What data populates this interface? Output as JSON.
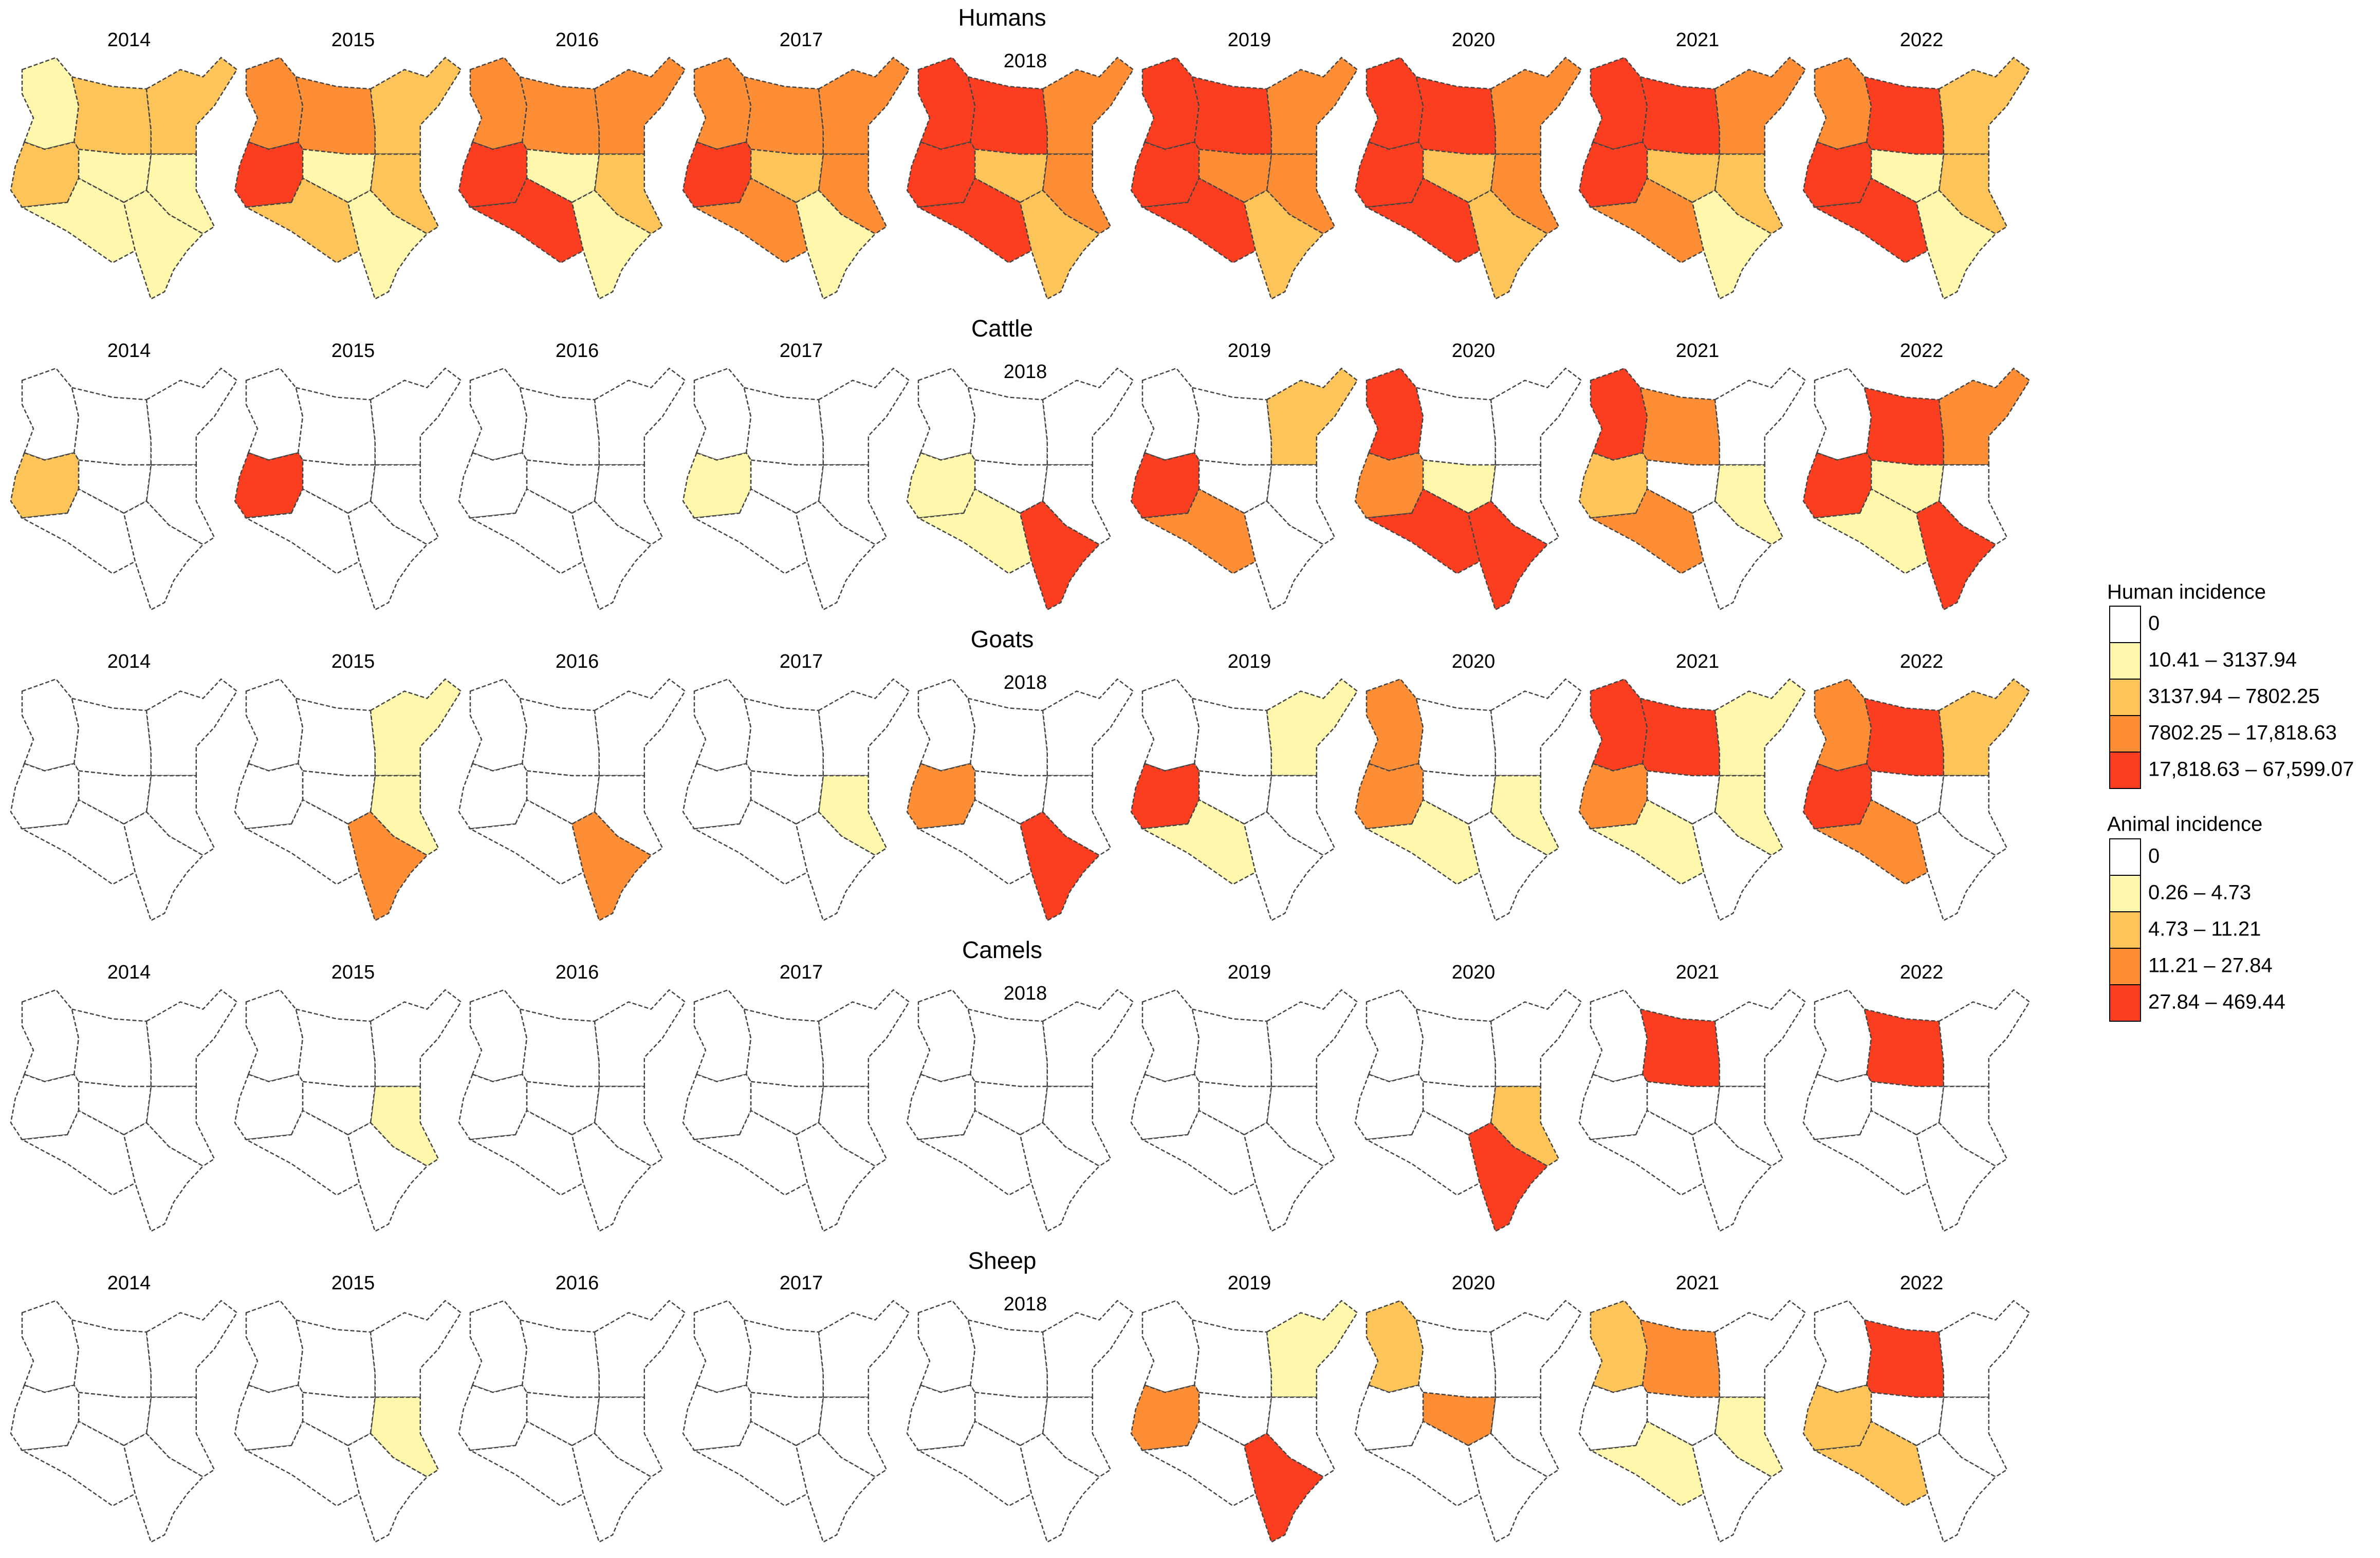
{
  "years": [
    "2014",
    "2015",
    "2016",
    "2017",
    "2018",
    "2019",
    "2020",
    "2021",
    "2022"
  ],
  "rows": [
    {
      "title": "Humans",
      "legend": 0,
      "panels": [
        [
          1,
          2,
          2,
          1,
          1,
          2,
          1,
          1
        ],
        [
          3,
          3,
          2,
          2,
          1,
          4,
          2,
          1
        ],
        [
          3,
          3,
          3,
          2,
          1,
          4,
          4,
          1
        ],
        [
          3,
          3,
          3,
          3,
          2,
          4,
          3,
          1
        ],
        [
          4,
          4,
          3,
          3,
          2,
          4,
          4,
          2
        ],
        [
          4,
          4,
          3,
          3,
          3,
          4,
          4,
          2
        ],
        [
          4,
          4,
          3,
          3,
          2,
          4,
          4,
          2
        ],
        [
          4,
          4,
          3,
          2,
          2,
          4,
          3,
          1
        ],
        [
          3,
          4,
          2,
          2,
          1,
          4,
          4,
          1
        ]
      ]
    },
    {
      "title": "Cattle",
      "legend": 1,
      "panels": [
        [
          0,
          0,
          0,
          0,
          0,
          2,
          0,
          0
        ],
        [
          0,
          0,
          0,
          0,
          0,
          4,
          0,
          0
        ],
        [
          0,
          0,
          0,
          0,
          0,
          0,
          0,
          0
        ],
        [
          0,
          0,
          0,
          0,
          0,
          1,
          0,
          0
        ],
        [
          0,
          0,
          0,
          0,
          0,
          1,
          1,
          4
        ],
        [
          0,
          0,
          2,
          0,
          0,
          4,
          3,
          0
        ],
        [
          4,
          0,
          0,
          0,
          1,
          3,
          4,
          4
        ],
        [
          4,
          3,
          0,
          1,
          0,
          2,
          3,
          0
        ],
        [
          0,
          4,
          3,
          0,
          1,
          4,
          1,
          4
        ]
      ]
    },
    {
      "title": "Goats",
      "legend": 1,
      "panels": [
        [
          0,
          0,
          0,
          0,
          0,
          0,
          0,
          0
        ],
        [
          0,
          0,
          1,
          1,
          0,
          0,
          0,
          3
        ],
        [
          0,
          0,
          0,
          0,
          0,
          0,
          0,
          3
        ],
        [
          0,
          0,
          0,
          1,
          0,
          0,
          0,
          0
        ],
        [
          0,
          0,
          0,
          0,
          0,
          3,
          0,
          4
        ],
        [
          0,
          0,
          1,
          0,
          0,
          4,
          1,
          0
        ],
        [
          3,
          0,
          0,
          1,
          0,
          3,
          1,
          0
        ],
        [
          4,
          4,
          1,
          1,
          0,
          3,
          1,
          0
        ],
        [
          3,
          4,
          2,
          0,
          0,
          4,
          3,
          0
        ]
      ]
    },
    {
      "title": "Camels",
      "legend": 1,
      "panels": [
        [
          0,
          0,
          0,
          0,
          0,
          0,
          0,
          0
        ],
        [
          0,
          0,
          0,
          1,
          0,
          0,
          0,
          0
        ],
        [
          0,
          0,
          0,
          0,
          0,
          0,
          0,
          0
        ],
        [
          0,
          0,
          0,
          0,
          0,
          0,
          0,
          0
        ],
        [
          0,
          0,
          0,
          0,
          0,
          0,
          0,
          0
        ],
        [
          0,
          0,
          0,
          0,
          0,
          0,
          0,
          0
        ],
        [
          0,
          0,
          0,
          2,
          0,
          0,
          0,
          4
        ],
        [
          0,
          4,
          0,
          0,
          0,
          0,
          0,
          0
        ],
        [
          0,
          4,
          0,
          0,
          0,
          0,
          0,
          0
        ]
      ]
    },
    {
      "title": "Sheep",
      "legend": 1,
      "panels": [
        [
          0,
          0,
          0,
          0,
          0,
          0,
          0,
          0
        ],
        [
          0,
          0,
          0,
          1,
          0,
          0,
          0,
          0
        ],
        [
          0,
          0,
          0,
          0,
          0,
          0,
          0,
          0
        ],
        [
          0,
          0,
          0,
          0,
          0,
          0,
          0,
          0
        ],
        [
          0,
          0,
          0,
          0,
          0,
          0,
          0,
          0
        ],
        [
          0,
          0,
          1,
          0,
          0,
          3,
          0,
          4
        ],
        [
          2,
          0,
          0,
          0,
          3,
          0,
          0,
          0
        ],
        [
          2,
          3,
          0,
          1,
          0,
          0,
          1,
          0
        ],
        [
          0,
          4,
          0,
          0,
          0,
          2,
          2,
          0
        ]
      ]
    }
  ],
  "legends": [
    {
      "title": "Human incidence",
      "colors": [
        "#ffffff",
        "#fef7ac",
        "#fdc45a",
        "#fd8e36",
        "#fb3e1f"
      ],
      "labels": [
        "0",
        "10.41 – 3137.94",
        "3137.94 – 7802.25",
        "7802.25 – 17,818.63",
        "17,818.63 – 67,599.07"
      ]
    },
    {
      "title": "Animal incidence",
      "colors": [
        "#ffffff",
        "#fef7ac",
        "#fdc45a",
        "#fd8e36",
        "#fb3e1f"
      ],
      "labels": [
        "0",
        "0.26 – 4.73",
        "4.73 – 11.21",
        "11.21 – 27.84",
        "27.84 – 469.44"
      ]
    }
  ]
}
